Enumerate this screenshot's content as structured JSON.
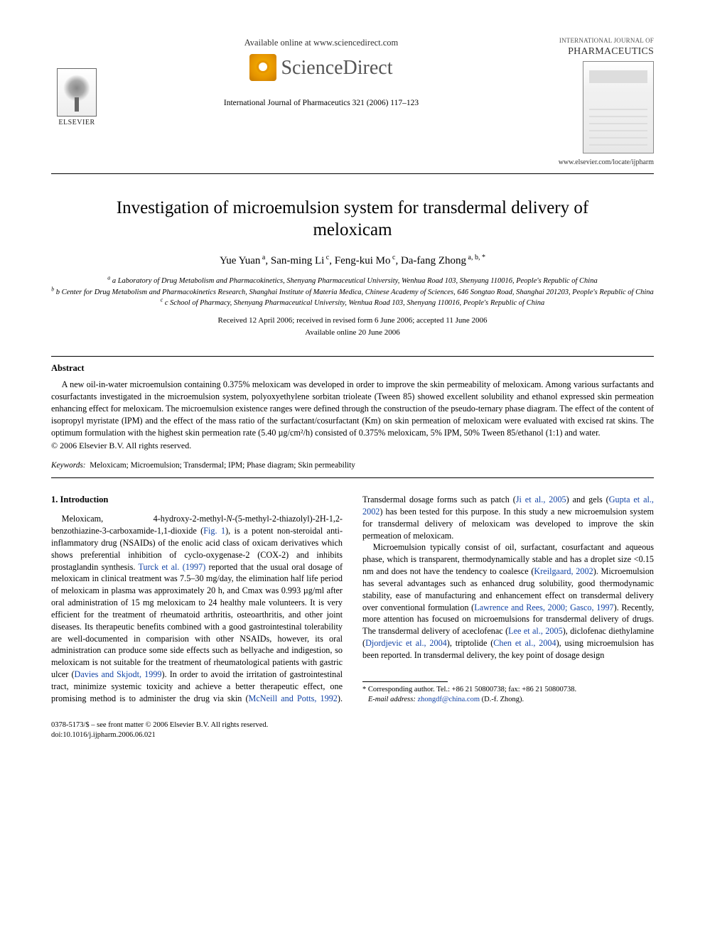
{
  "header": {
    "available_line": "Available online at www.sciencedirect.com",
    "sd_text": "ScienceDirect",
    "journal_ref": "International Journal of Pharmaceutics 321 (2006) 117–123",
    "elsevier_label": "ELSEVIER",
    "ijp_label_line1": "INTERNATIONAL JOURNAL OF",
    "ijp_label_line2": "PHARMACEUTICS",
    "locate_url": "www.elsevier.com/locate/ijpharm"
  },
  "article": {
    "title": "Investigation of microemulsion system for transdermal delivery of meloxicam",
    "authors_html": "Yue Yuan <sup>a</sup>, San-ming Li <sup>c</sup>, Feng-kui Mo <sup>c</sup>, Da-fang Zhong <sup>a, b, *</sup>",
    "affiliations": [
      "a Laboratory of Drug Metabolism and Pharmacokinetics, Shenyang Pharmaceutical University, Wenhua Road 103, Shenyang 110016, People's Republic of China",
      "b Center for Drug Metabolism and Pharmacokinetics Research, Shanghai Institute of Materia Medica, Chinese Academy of Sciences, 646 Songtao Road, Shanghai 201203, People's Republic of China",
      "c School of Pharmacy, Shenyang Pharmaceutical University, Wenhua Road 103, Shenyang 110016, People's Republic of China"
    ],
    "dates": "Received 12 April 2006; received in revised form 6 June 2006; accepted 11 June 2006",
    "pub_online": "Available online 20 June 2006"
  },
  "abstract": {
    "heading": "Abstract",
    "body": "A new oil-in-water microemulsion containing 0.375% meloxicam was developed in order to improve the skin permeability of meloxicam. Among various surfactants and cosurfactants investigated in the microemulsion system, polyoxyethylene sorbitan trioleate (Tween 85) showed excellent solubility and ethanol expressed skin permeation enhancing effect for meloxicam. The microemulsion existence ranges were defined through the construction of the pseudo-ternary phase diagram. The effect of the content of isopropyl myristate (IPM) and the effect of the mass ratio of the surfactant/cosurfactant (Km) on skin permeation of meloxicam were evaluated with excised rat skins. The optimum formulation with the highest skin permeation rate (5.40 µg/cm²/h) consisted of 0.375% meloxicam, 5% IPM, 50% Tween 85/ethanol (1:1) and water.",
    "copyright": "© 2006 Elsevier B.V. All rights reserved."
  },
  "keywords": {
    "label": "Keywords:",
    "list": "Meloxicam; Microemulsion; Transdermal; IPM; Phase diagram; Skin permeability"
  },
  "section1": {
    "heading": "1. Introduction",
    "para1_pre": "Meloxicam, 4-hydroxy-2-methyl-",
    "para1_ital": "N",
    "para1_mid1": "-(5-methyl-2-thiazolyl)-2H-1,2-benzothiazine-3-carboxamide-1,1-dioxide (",
    "para1_cite1": "Fig. 1",
    "para1_mid2": "), is a potent non-steroidal anti-inflammatory drug (NSAIDs) of the enolic acid class of oxicam derivatives which shows preferential inhibition of cyclo-oxygenase-2 (COX-2) and inhibits prostaglandin synthesis. ",
    "para1_cite2": "Turck et al. (1997)",
    "para1_mid3": " reported that the usual oral dosage of meloxicam in clinical treatment was 7.5–30 mg/day, the elimination half life period of meloxicam in plasma was approximately 20 h, and Cmax was 0.993 µg/ml after oral administration of 15 mg meloxicam to 24 healthy male volunteers. It is very efficient for the treatment of rheumatoid arthritis, osteoarthritis, and other joint diseases. Its therapeutic benefits combined with a good gastrointestinal tolerability are well-documented in comparision with other NSAIDs, however, its oral administration can produce some side effects such as bellyache and indigestion, so meloxicam is not suitable for the treatment of rheumatological patients with gastric ulcer (",
    "para1_cite3": "Davies and Skjodt, 1999",
    "para1_mid4": "). In order to avoid the irritation of gastrointestinal tract, minimize systemic toxicity and achieve a better therapeutic effect, one promising method is to administer the drug via skin (",
    "para1_cite4": "McNeill and Potts, 1992",
    "para1_mid5": "). Transdermal dosage forms such as patch (",
    "para1_cite5": "Ji et al., 2005",
    "para1_mid6": ") and gels (",
    "para1_cite6": "Gupta et al., 2002",
    "para1_mid7": ") has been tested for this purpose. In this study a new microemulsion system for transdermal delivery of meloxicam was developed to improve the skin permeation of meloxicam.",
    "para2_pre": "Microemulsion typically consist of oil, surfactant, cosurfactant and aqueous phase, which is transparent, thermodynamically stable and has a droplet size <0.15 nm and does not have the tendency to coalesce (",
    "para2_cite1": "Kreilgaard, 2002",
    "para2_mid1": "). Microemulsion has several advantages such as enhanced drug solubility, good thermodynamic stability, ease of manufacturing and enhancement effect on transdermal delivery over conventional formulation (",
    "para2_cite2": "Lawrence and Rees, 2000; Gasco, 1997",
    "para2_mid2": "). Recently, more attention has focused on microemulsions for transdermal delivery of drugs. The transdermal delivery of aceclofenac (",
    "para2_cite3": "Lee et al., 2005",
    "para2_mid3": "), diclofenac diethylamine (",
    "para2_cite4": "Djordjevic et al., 2004",
    "para2_mid4": "), triptolide (",
    "para2_cite5": "Chen et al., 2004",
    "para2_mid5": "), using microemulsion has been reported. In transdermal delivery, the key point of dosage design"
  },
  "footnote": {
    "corr_line": "* Corresponding author. Tel.: +86 21 50800738; fax: +86 21 50800738.",
    "email_label": "E-mail address:",
    "email": "zhongdf@china.com",
    "email_tail": " (D.-f. Zhong)."
  },
  "footer": {
    "issn_line": "0378-5173/$ – see front matter © 2006 Elsevier B.V. All rights reserved.",
    "doi_line": "doi:10.1016/j.ijpharm.2006.06.021"
  },
  "colors": {
    "link": "#1344a5",
    "text": "#000000",
    "bg": "#ffffff"
  }
}
